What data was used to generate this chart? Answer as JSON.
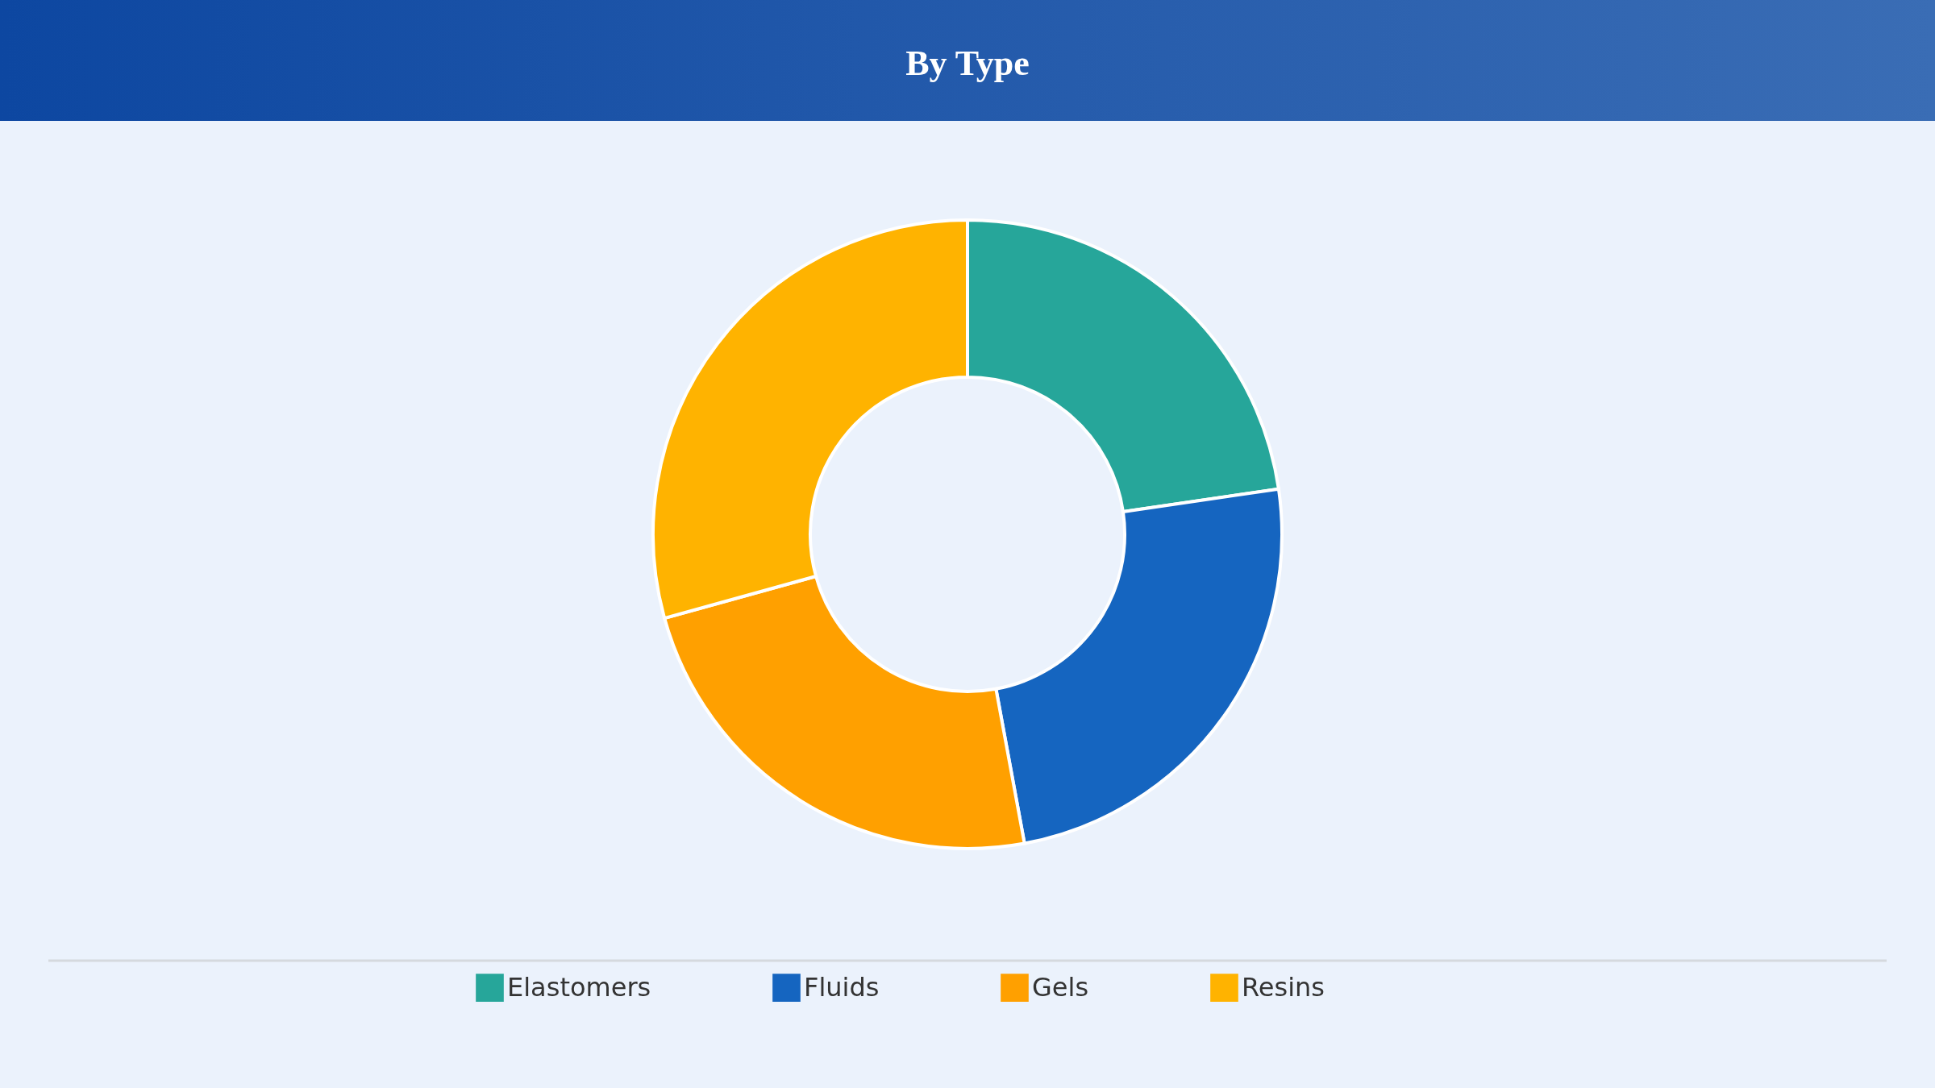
{
  "chart_data": {
    "type": "donut",
    "title": "By Type",
    "categories": [
      "Elastomers",
      "Fluids",
      "Gels",
      "Resins"
    ],
    "values": [
      22.7,
      24.4,
      23.6,
      29.3
    ],
    "colors": [
      "#26a69a",
      "#1565c0",
      "#ffa000",
      "#ffb300"
    ],
    "legend": "bottom"
  }
}
